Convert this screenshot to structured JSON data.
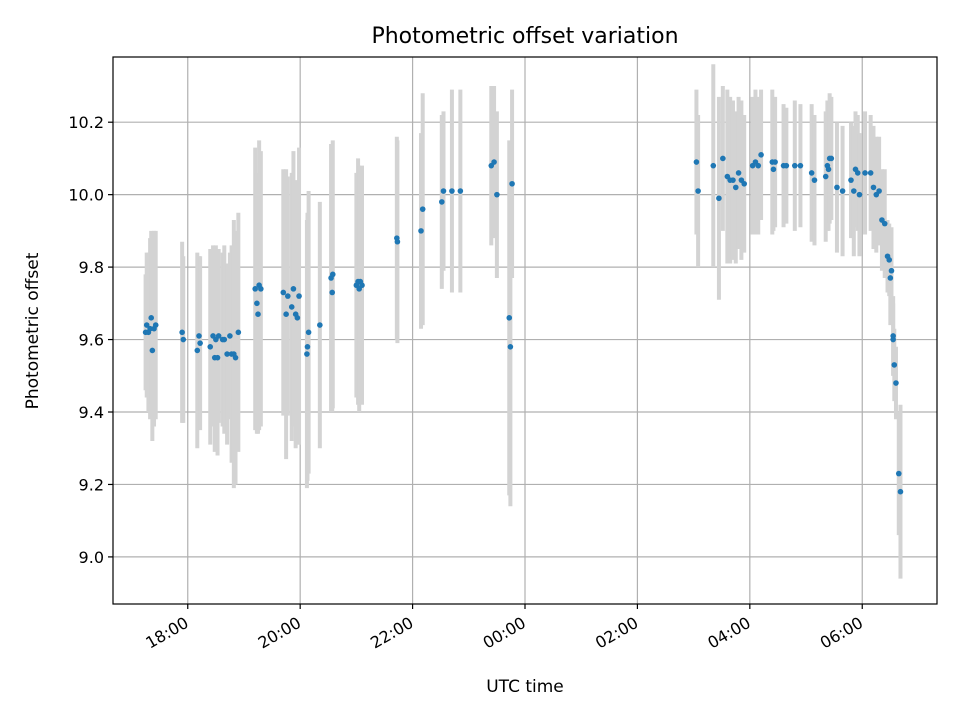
{
  "chart_data": {
    "type": "scatter",
    "title": "Photometric offset variation",
    "xlabel": "UTC time",
    "ylabel": "Photometric offset",
    "x_unit": "hours since 00:00 UTC (first day)",
    "xlim": [
      16.67,
      31.33
    ],
    "ylim": [
      8.87,
      10.38
    ],
    "grid": true,
    "point_color": "#1f77b4",
    "errorbar_color": "#d3d3d3",
    "x_ticks": [
      {
        "value": 18,
        "label": "18:00"
      },
      {
        "value": 20,
        "label": "20:00"
      },
      {
        "value": 22,
        "label": "22:00"
      },
      {
        "value": 24,
        "label": "00:00"
      },
      {
        "value": 26,
        "label": "02:00"
      },
      {
        "value": 28,
        "label": "04:00"
      },
      {
        "value": 30,
        "label": "06:00"
      }
    ],
    "y_ticks": [
      {
        "value": 9.0,
        "label": "9.0"
      },
      {
        "value": 9.2,
        "label": "9.2"
      },
      {
        "value": 9.4,
        "label": "9.4"
      },
      {
        "value": 9.6,
        "label": "9.6"
      },
      {
        "value": 9.8,
        "label": "9.8"
      },
      {
        "value": 10.0,
        "label": "10.0"
      },
      {
        "value": 10.2,
        "label": "10.2"
      }
    ],
    "points": [
      [
        17.25,
        9.62,
        0.16
      ],
      [
        17.27,
        9.64,
        0.2
      ],
      [
        17.3,
        9.62,
        0.22
      ],
      [
        17.33,
        9.63,
        0.25
      ],
      [
        17.35,
        9.66,
        0.24
      ],
      [
        17.37,
        9.57,
        0.25
      ],
      [
        17.4,
        9.63,
        0.27
      ],
      [
        17.43,
        9.64,
        0.26
      ],
      [
        17.9,
        9.62,
        0.25
      ],
      [
        17.92,
        9.6,
        0.23
      ],
      [
        18.17,
        9.57,
        0.27
      ],
      [
        18.2,
        9.61,
        0.22
      ],
      [
        18.22,
        9.59,
        0.24
      ],
      [
        18.4,
        9.58,
        0.27
      ],
      [
        18.45,
        9.61,
        0.25
      ],
      [
        18.48,
        9.55,
        0.26
      ],
      [
        18.5,
        9.6,
        0.26
      ],
      [
        18.53,
        9.55,
        0.27
      ],
      [
        18.55,
        9.61,
        0.24
      ],
      [
        18.62,
        9.6,
        0.24
      ],
      [
        18.65,
        9.6,
        0.26
      ],
      [
        18.7,
        9.56,
        0.25
      ],
      [
        18.75,
        9.61,
        0.23
      ],
      [
        18.78,
        9.56,
        0.3
      ],
      [
        18.82,
        9.56,
        0.37
      ],
      [
        18.85,
        9.55,
        0.35
      ],
      [
        18.9,
        9.62,
        0.33
      ],
      [
        19.2,
        9.74,
        0.39
      ],
      [
        19.23,
        9.7,
        0.36
      ],
      [
        19.25,
        9.67,
        0.33
      ],
      [
        19.27,
        9.75,
        0.4
      ],
      [
        19.3,
        9.74,
        0.38
      ],
      [
        19.7,
        9.73,
        0.34
      ],
      [
        19.75,
        9.67,
        0.4
      ],
      [
        19.78,
        9.72,
        0.33
      ],
      [
        19.85,
        9.69,
        0.37
      ],
      [
        19.88,
        9.74,
        0.38
      ],
      [
        19.92,
        9.67,
        0.37
      ],
      [
        19.95,
        9.66,
        0.35
      ],
      [
        19.98,
        9.72,
        0.41
      ],
      [
        20.12,
        9.56,
        0.37
      ],
      [
        20.13,
        9.58,
        0.37
      ],
      [
        20.15,
        9.62,
        0.39
      ],
      [
        20.35,
        9.64,
        0.34
      ],
      [
        20.55,
        9.77,
        0.37
      ],
      [
        20.57,
        9.73,
        0.33
      ],
      [
        20.58,
        9.78,
        0.37
      ],
      [
        21.0,
        9.75,
        0.31
      ],
      [
        21.03,
        9.76,
        0.34
      ],
      [
        21.05,
        9.74,
        0.34
      ],
      [
        21.07,
        9.76,
        0.31
      ],
      [
        21.1,
        9.75,
        0.33
      ],
      [
        21.72,
        9.88,
        0.28
      ],
      [
        21.73,
        9.87,
        0.28
      ],
      [
        22.15,
        9.9,
        0.27
      ],
      [
        22.18,
        9.96,
        0.32
      ],
      [
        22.52,
        9.98,
        0.24
      ],
      [
        22.55,
        10.01,
        0.22
      ],
      [
        22.7,
        10.01,
        0.28
      ],
      [
        22.85,
        10.01,
        0.28
      ],
      [
        23.4,
        10.08,
        0.22
      ],
      [
        23.45,
        10.09,
        0.21
      ],
      [
        23.5,
        10.0,
        0.23
      ],
      [
        23.72,
        9.66,
        0.49
      ],
      [
        23.74,
        9.58,
        0.44
      ],
      [
        23.77,
        10.03,
        0.26
      ],
      [
        27.05,
        10.09,
        0.2
      ],
      [
        27.08,
        10.01,
        0.21
      ],
      [
        27.35,
        10.08,
        0.28
      ],
      [
        27.45,
        9.99,
        0.28
      ],
      [
        27.52,
        10.1,
        0.2
      ],
      [
        27.6,
        10.05,
        0.24
      ],
      [
        27.65,
        10.04,
        0.23
      ],
      [
        27.7,
        10.04,
        0.22
      ],
      [
        27.75,
        10.02,
        0.21
      ],
      [
        27.8,
        10.06,
        0.21
      ],
      [
        27.85,
        10.04,
        0.22
      ],
      [
        27.9,
        10.03,
        0.19
      ],
      [
        28.05,
        10.08,
        0.19
      ],
      [
        28.1,
        10.09,
        0.2
      ],
      [
        28.15,
        10.08,
        0.19
      ],
      [
        28.2,
        10.11,
        0.18
      ],
      [
        28.4,
        10.09,
        0.2
      ],
      [
        28.42,
        10.07,
        0.17
      ],
      [
        28.45,
        10.09,
        0.18
      ],
      [
        28.6,
        10.08,
        0.17
      ],
      [
        28.65,
        10.08,
        0.16
      ],
      [
        28.8,
        10.08,
        0.18
      ],
      [
        28.9,
        10.08,
        0.17
      ],
      [
        29.1,
        10.06,
        0.19
      ],
      [
        29.15,
        10.04,
        0.18
      ],
      [
        29.35,
        10.05,
        0.18
      ],
      [
        29.38,
        10.08,
        0.18
      ],
      [
        29.4,
        10.07,
        0.17
      ],
      [
        29.42,
        10.1,
        0.18
      ],
      [
        29.45,
        10.1,
        0.17
      ],
      [
        29.55,
        10.02,
        0.18
      ],
      [
        29.65,
        10.01,
        0.18
      ],
      [
        29.8,
        10.04,
        0.16
      ],
      [
        29.85,
        10.01,
        0.18
      ],
      [
        29.88,
        10.07,
        0.16
      ],
      [
        29.92,
        10.06,
        0.16
      ],
      [
        29.95,
        10.0,
        0.17
      ],
      [
        30.05,
        10.06,
        0.17
      ],
      [
        30.15,
        10.06,
        0.16
      ],
      [
        30.2,
        10.02,
        0.17
      ],
      [
        30.25,
        10.0,
        0.16
      ],
      [
        30.3,
        10.01,
        0.15
      ],
      [
        30.35,
        9.93,
        0.14
      ],
      [
        30.4,
        9.92,
        0.15
      ],
      [
        30.45,
        9.83,
        0.1
      ],
      [
        30.5,
        9.77,
        0.13
      ],
      [
        30.55,
        9.61,
        0.11
      ],
      [
        30.57,
        9.53,
        0.1
      ],
      [
        30.6,
        9.48,
        0.1
      ],
      [
        30.65,
        9.23,
        0.17
      ],
      [
        30.68,
        9.18,
        0.24
      ],
      [
        30.52,
        9.79,
        0.12
      ],
      [
        30.48,
        9.82,
        0.1
      ],
      [
        30.55,
        9.6,
        0.1
      ]
    ]
  }
}
